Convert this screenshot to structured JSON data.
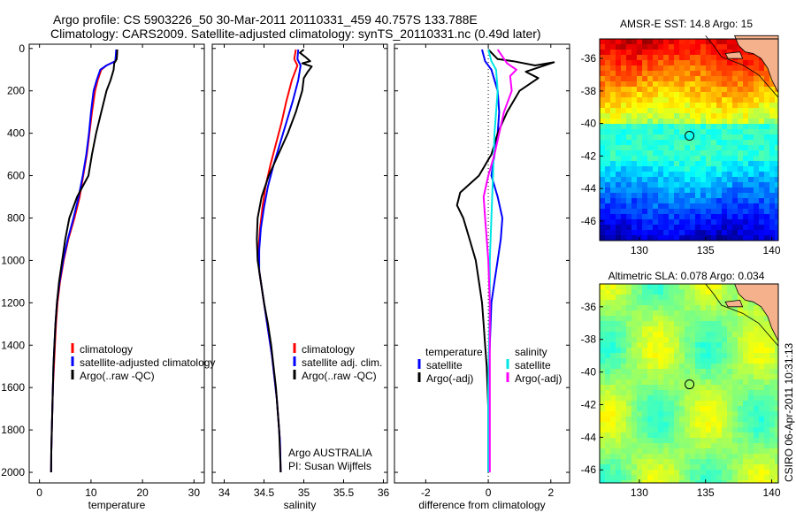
{
  "header": {
    "line1": "Argo profile: CS 5903226_50 30-Mar-2011 20110331_459 40.757S 133.788E",
    "line2": "Climatology: CARS2009. Satellite-adjusted climatology: synTS_20110331.nc (0.49d later)"
  },
  "credit": "CSIRO 06-Apr-2011 10:31:13",
  "colors": {
    "climatology": "#ff0000",
    "satellite": "#0000ff",
    "argo": "#000000",
    "sal_satellite": "#00e5e5",
    "sal_argo": "#ff00ff",
    "land": "#f5b08c"
  },
  "chart_data": [
    {
      "type": "line",
      "xlabel": "temperature",
      "ylabel": "",
      "xlim": [
        -2,
        32
      ],
      "ylim": [
        2050,
        0
      ],
      "xticks": [
        "0",
        "10",
        "20",
        "30"
      ],
      "xtick_values": [
        0,
        10,
        20,
        30
      ],
      "yticks": [
        "0",
        "200",
        "400",
        "600",
        "800",
        "1000",
        "1200",
        "1400",
        "1600",
        "1800",
        "2000"
      ],
      "ytick_values": [
        0,
        200,
        400,
        600,
        800,
        1000,
        1200,
        1400,
        1600,
        1800,
        2000
      ],
      "legend": [
        "climatology",
        "satellite-adjusted climatology",
        "Argo(..raw -QC)"
      ],
      "legend_placement": "lower-middle",
      "series": [
        {
          "name": "climatology",
          "color": "#ff0000",
          "points": [
            [
              15.1,
              5
            ],
            [
              15.0,
              40
            ],
            [
              14.7,
              60
            ],
            [
              13.0,
              80
            ],
            [
              12.0,
              100
            ],
            [
              11.3,
              150
            ],
            [
              10.8,
              200
            ],
            [
              10.2,
              300
            ],
            [
              9.7,
              400
            ],
            [
              9.2,
              500
            ],
            [
              8.5,
              600
            ],
            [
              7.8,
              700
            ],
            [
              6.8,
              800
            ],
            [
              5.6,
              900
            ],
            [
              4.7,
              1000
            ],
            [
              4.0,
              1100
            ],
            [
              3.5,
              1200
            ],
            [
              3.2,
              1300
            ],
            [
              3.0,
              1400
            ],
            [
              2.8,
              1500
            ],
            [
              2.6,
              1600
            ],
            [
              2.5,
              1700
            ],
            [
              2.4,
              1800
            ],
            [
              2.3,
              1900
            ],
            [
              2.25,
              2000
            ]
          ]
        },
        {
          "name": "satellite-adjusted climatology",
          "color": "#0000ff",
          "points": [
            [
              14.9,
              5
            ],
            [
              14.8,
              40
            ],
            [
              14.7,
              60
            ],
            [
              13.0,
              80
            ],
            [
              11.8,
              100
            ],
            [
              11.1,
              150
            ],
            [
              10.5,
              200
            ],
            [
              10.0,
              300
            ],
            [
              9.6,
              400
            ],
            [
              9.1,
              500
            ],
            [
              8.4,
              600
            ],
            [
              7.6,
              700
            ],
            [
              6.6,
              800
            ],
            [
              5.5,
              900
            ],
            [
              4.6,
              1000
            ],
            [
              3.9,
              1100
            ],
            [
              3.4,
              1200
            ],
            [
              3.1,
              1300
            ],
            [
              2.9,
              1400
            ],
            [
              2.7,
              1500
            ],
            [
              2.6,
              1600
            ],
            [
              2.5,
              1700
            ],
            [
              2.4,
              1800
            ],
            [
              2.3,
              1900
            ],
            [
              2.25,
              2000
            ]
          ]
        },
        {
          "name": "Argo(..raw -QC)",
          "color": "#000000",
          "points": [
            [
              15.1,
              5
            ],
            [
              15.0,
              50
            ],
            [
              14.5,
              70
            ],
            [
              14.4,
              100
            ],
            [
              13.8,
              150
            ],
            [
              13.0,
              200
            ],
            [
              12.0,
              300
            ],
            [
              11.0,
              400
            ],
            [
              10.2,
              500
            ],
            [
              9.5,
              600
            ],
            [
              7.3,
              700
            ],
            [
              5.8,
              800
            ],
            [
              5.0,
              900
            ],
            [
              4.4,
              1000
            ],
            [
              3.8,
              1100
            ],
            [
              3.4,
              1200
            ],
            [
              3.1,
              1300
            ],
            [
              2.9,
              1400
            ],
            [
              2.7,
              1500
            ],
            [
              2.6,
              1600
            ],
            [
              2.5,
              1700
            ],
            [
              2.4,
              1800
            ],
            [
              2.3,
              1900
            ],
            [
              2.25,
              2000
            ]
          ]
        }
      ]
    },
    {
      "type": "line",
      "xlabel": "salinity",
      "xlim": [
        33.85,
        36.05
      ],
      "ylim": [
        2050,
        0
      ],
      "xticks": [
        "34",
        "34.5",
        "35",
        "35.5",
        "36"
      ],
      "xtick_values": [
        34,
        34.5,
        35,
        35.5,
        36
      ],
      "legend": [
        "climatology",
        "satellite adj. clim.",
        "Argo(..raw -QC)"
      ],
      "legend_placement": "lower-right",
      "annotation": [
        "Argo AUSTRALIA",
        "PI: Susan Wijffels"
      ],
      "series": [
        {
          "name": "climatology",
          "color": "#ff0000",
          "points": [
            [
              34.9,
              5
            ],
            [
              34.88,
              50
            ],
            [
              34.92,
              80
            ],
            [
              34.85,
              150
            ],
            [
              34.78,
              250
            ],
            [
              34.72,
              350
            ],
            [
              34.65,
              450
            ],
            [
              34.58,
              550
            ],
            [
              34.52,
              650
            ],
            [
              34.48,
              750
            ],
            [
              34.45,
              850
            ],
            [
              34.43,
              950
            ],
            [
              34.44,
              1050
            ],
            [
              34.48,
              1150
            ],
            [
              34.52,
              1250
            ],
            [
              34.56,
              1350
            ],
            [
              34.6,
              1450
            ],
            [
              34.63,
              1550
            ],
            [
              34.66,
              1650
            ],
            [
              34.68,
              1750
            ],
            [
              34.7,
              1850
            ],
            [
              34.71,
              2000
            ]
          ]
        },
        {
          "name": "satellite adj. clim.",
          "color": "#0000ff",
          "points": [
            [
              34.93,
              5
            ],
            [
              34.92,
              50
            ],
            [
              34.96,
              80
            ],
            [
              34.93,
              150
            ],
            [
              34.86,
              250
            ],
            [
              34.78,
              350
            ],
            [
              34.7,
              450
            ],
            [
              34.62,
              550
            ],
            [
              34.55,
              650
            ],
            [
              34.5,
              750
            ],
            [
              34.46,
              850
            ],
            [
              34.44,
              950
            ],
            [
              34.44,
              1050
            ],
            [
              34.48,
              1150
            ],
            [
              34.52,
              1250
            ],
            [
              34.56,
              1350
            ],
            [
              34.6,
              1450
            ],
            [
              34.63,
              1550
            ],
            [
              34.66,
              1650
            ],
            [
              34.68,
              1750
            ],
            [
              34.7,
              1850
            ],
            [
              34.71,
              2000
            ]
          ]
        },
        {
          "name": "Argo(..raw -QC)",
          "color": "#000000",
          "points": [
            [
              35.0,
              5
            ],
            [
              34.95,
              20
            ],
            [
              35.02,
              40
            ],
            [
              35.08,
              60
            ],
            [
              34.98,
              70
            ],
            [
              35.1,
              85
            ],
            [
              35.05,
              110
            ],
            [
              35.0,
              140
            ],
            [
              34.98,
              200
            ],
            [
              34.9,
              300
            ],
            [
              34.8,
              400
            ],
            [
              34.68,
              500
            ],
            [
              34.56,
              600
            ],
            [
              34.47,
              700
            ],
            [
              34.42,
              800
            ],
            [
              34.41,
              900
            ],
            [
              34.42,
              1000
            ],
            [
              34.46,
              1100
            ],
            [
              34.5,
              1200
            ],
            [
              34.55,
              1300
            ],
            [
              34.59,
              1400
            ],
            [
              34.62,
              1500
            ],
            [
              34.65,
              1600
            ],
            [
              34.67,
              1700
            ],
            [
              34.69,
              1800
            ],
            [
              34.7,
              1900
            ],
            [
              34.71,
              2000
            ]
          ]
        }
      ]
    },
    {
      "type": "line",
      "xlabel": "difference from climatology",
      "xlim": [
        -3,
        2.6
      ],
      "ylim": [
        2050,
        0
      ],
      "xticks": [
        "-2",
        "0",
        "2"
      ],
      "xtick_values": [
        -2,
        0,
        2
      ],
      "legend_headers": [
        "temperature",
        "salinity"
      ],
      "legend": [
        "satellite",
        "Argo(-adj)",
        "satellite",
        "Argo(-adj)"
      ],
      "legend_placement": "lower-middle",
      "series": [
        {
          "name": "temperature satellite",
          "color": "#0000ff",
          "points": [
            [
              -0.2,
              5
            ],
            [
              -0.1,
              60
            ],
            [
              0.1,
              100
            ],
            [
              0.3,
              200
            ],
            [
              0.35,
              300
            ],
            [
              0.3,
              400
            ],
            [
              0.2,
              500
            ],
            [
              0.1,
              600
            ],
            [
              0.3,
              700
            ],
            [
              0.45,
              800
            ],
            [
              0.4,
              900
            ],
            [
              0.3,
              1000
            ],
            [
              0.2,
              1100
            ],
            [
              0.1,
              1200
            ],
            [
              0.05,
              1400
            ],
            [
              0.0,
              1600
            ],
            [
              0.0,
              1800
            ],
            [
              0.0,
              2000
            ]
          ]
        },
        {
          "name": "temperature Argo(-adj)",
          "color": "#000000",
          "points": [
            [
              0.0,
              5
            ],
            [
              0.3,
              50
            ],
            [
              0.8,
              60
            ],
            [
              1.5,
              80
            ],
            [
              2.1,
              65
            ],
            [
              1.2,
              110
            ],
            [
              1.6,
              140
            ],
            [
              1.0,
              200
            ],
            [
              0.6,
              300
            ],
            [
              0.3,
              400
            ],
            [
              0.1,
              500
            ],
            [
              -0.3,
              600
            ],
            [
              -0.9,
              680
            ],
            [
              -1.0,
              740
            ],
            [
              -0.8,
              800
            ],
            [
              -0.6,
              900
            ],
            [
              -0.4,
              1000
            ],
            [
              -0.3,
              1100
            ],
            [
              -0.2,
              1200
            ],
            [
              -0.15,
              1300
            ],
            [
              -0.1,
              1400
            ],
            [
              -0.05,
              1500
            ],
            [
              0.0,
              1700
            ],
            [
              0.0,
              2000
            ]
          ]
        },
        {
          "name": "salinity satellite",
          "color": "#00e5e5",
          "points": [
            [
              0.0,
              5
            ],
            [
              0.1,
              60
            ],
            [
              0.25,
              100
            ],
            [
              0.3,
              200
            ],
            [
              0.2,
              400
            ],
            [
              0.15,
              600
            ],
            [
              0.1,
              800
            ],
            [
              0.05,
              1000
            ],
            [
              0.05,
              1200
            ],
            [
              0.0,
              1600
            ],
            [
              0.0,
              2000
            ]
          ]
        },
        {
          "name": "salinity Argo(-adj)",
          "color": "#ff00ff",
          "points": [
            [
              0.3,
              5
            ],
            [
              0.6,
              70
            ],
            [
              0.9,
              100
            ],
            [
              0.7,
              130
            ],
            [
              0.75,
              200
            ],
            [
              0.5,
              300
            ],
            [
              0.35,
              400
            ],
            [
              0.2,
              500
            ],
            [
              0.0,
              600
            ],
            [
              -0.15,
              700
            ],
            [
              -0.1,
              800
            ],
            [
              -0.05,
              900
            ],
            [
              0.0,
              1000
            ],
            [
              0.05,
              1200
            ],
            [
              0.05,
              1400
            ],
            [
              0.05,
              1600
            ],
            [
              0.05,
              1800
            ],
            [
              0.05,
              2000
            ]
          ]
        }
      ]
    },
    {
      "type": "heatmap",
      "title": "AMSR-E SST: 14.8 Argo: 15",
      "xticks": [
        "130",
        "135",
        "140"
      ],
      "xtick_values": [
        130,
        135,
        140
      ],
      "yticks": [
        "-36",
        "-38",
        "-40",
        "-42",
        "-44",
        "-46"
      ],
      "ytick_values": [
        -36,
        -38,
        -40,
        -42,
        -44,
        -46
      ],
      "xlim": [
        127,
        140.5
      ],
      "ylim": [
        -47.2,
        -34.8
      ],
      "marker": [
        133.788,
        -40.757
      ],
      "colormap": "jet"
    },
    {
      "type": "heatmap",
      "title": "Altimetric SLA: 0.078 Argo: 0.034",
      "xticks": [
        "130",
        "135",
        "140"
      ],
      "xtick_values": [
        130,
        135,
        140
      ],
      "yticks": [
        "-36",
        "-38",
        "-40",
        "-42",
        "-44",
        "-46"
      ],
      "ytick_values": [
        -36,
        -38,
        -40,
        -42,
        -44,
        -46
      ],
      "xlim": [
        127,
        140.5
      ],
      "ylim": [
        -46.8,
        -34.6
      ],
      "marker": [
        133.788,
        -40.757
      ],
      "colormap": "jet"
    }
  ]
}
